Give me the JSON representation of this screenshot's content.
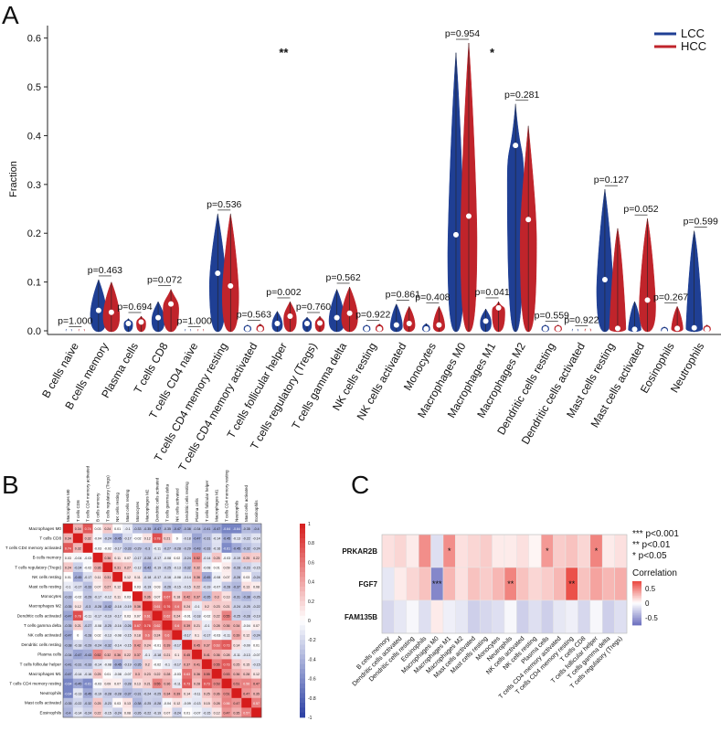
{
  "panel_labels": {
    "a": "A",
    "b": "B",
    "c": "C"
  },
  "colors": {
    "lcc": "#1f3f94",
    "hcc": "#c0242b",
    "heat_neg": "#2b3fa3",
    "heat_mid": "#ffffff",
    "heat_pos": "#d61c1c",
    "panel_c_neg": "#5b5fb8",
    "panel_c_pos": "#e8322a"
  },
  "chart_data": [
    {
      "type": "violin",
      "panel": "A",
      "title": "",
      "ylabel": "Fraction",
      "xlabel": "",
      "ylim": [
        0,
        0.62
      ],
      "yticks": [
        "0.0",
        "0.1",
        "0.2",
        "0.3",
        "0.4",
        "0.5",
        "0.6"
      ],
      "legend": {
        "position": "top-right",
        "entries": [
          "LCC",
          "HCC"
        ]
      },
      "categories": [
        "B cells naive",
        "B cells memory",
        "Plasma cells",
        "T cells CD8",
        "T cells CD4 naive",
        "T cells CD4 memory resting",
        "T cells CD4 memory activated",
        "T cells follicular helper",
        "T cells regulatory (Tregs)",
        "T cells gamma delta",
        "NK cells resting",
        "NK cells activated",
        "Monocytes",
        "Macrophages M0",
        "Macrophages M1",
        "Macrophages M2",
        "Dendritic cells resting",
        "Dendritic cells activated",
        "Mast cells resting",
        "Mast cells activated",
        "Eosinophils",
        "Neutrophils"
      ],
      "pvalues": [
        "p=1.000",
        "p=0.463",
        "p=0.694",
        "p=0.072",
        "p=1.000",
        "p=0.536",
        "p=0.563",
        "p=0.002",
        "p=0.760",
        "p=0.562",
        "p=0.922",
        "p=0.861",
        "p=0.408",
        "p=0.954",
        "p=0.041",
        "p=0.281",
        "p=0.559",
        "p=0.922",
        "p=0.127",
        "p=0.052",
        "p=0.267",
        "p=0.599"
      ],
      "significance": [
        {
          "category": "T cells follicular helper",
          "text": "**"
        },
        {
          "category": "Macrophages M1",
          "text": "*"
        }
      ],
      "series": [
        {
          "name": "LCC",
          "max": [
            0.001,
            0.105,
            0.025,
            0.06,
            0.001,
            0.24,
            0.012,
            0.04,
            0.028,
            0.085,
            0.012,
            0.055,
            0.015,
            0.57,
            0.045,
            0.465,
            0.012,
            0.002,
            0.29,
            0.06,
            0.008,
            0.205
          ],
          "median": [
            0.0,
            0.042,
            0.015,
            0.027,
            0.0,
            0.118,
            0.004,
            0.015,
            0.015,
            0.027,
            0.004,
            0.012,
            0.004,
            0.197,
            0.02,
            0.38,
            0.004,
            0.0,
            0.105,
            0.003,
            0.0,
            0.006
          ]
        },
        {
          "name": "HCC",
          "max": [
            0.001,
            0.1,
            0.03,
            0.085,
            0.001,
            0.24,
            0.014,
            0.06,
            0.03,
            0.09,
            0.014,
            0.05,
            0.05,
            0.59,
            0.06,
            0.42,
            0.012,
            0.003,
            0.21,
            0.23,
            0.05,
            0.012
          ],
          "median": [
            0.0,
            0.038,
            0.018,
            0.055,
            0.0,
            0.092,
            0.004,
            0.03,
            0.016,
            0.036,
            0.004,
            0.015,
            0.012,
            0.235,
            0.047,
            0.228,
            0.004,
            0.0,
            0.005,
            0.063,
            0.005,
            0.003
          ]
        }
      ]
    },
    {
      "type": "heatmap",
      "panel": "B",
      "labels": [
        "Macrophages M0",
        "T cells CD8",
        "T cells CD4 memory activated",
        "B cells memory",
        "T cells regulatory (Tregs)",
        "NK cells resting",
        "Mast cells resting",
        "Monocytes",
        "Macrophages M2",
        "Dendritic cells activated",
        "T cells gamma delta",
        "NK cells activated",
        "Dendritic cells resting",
        "Plasma cells",
        "T cells follicular helper",
        "Macrophages M1",
        "T cells CD4 memory resting",
        "Neutrophils",
        "Mast cells activated",
        "Eosinophils"
      ],
      "colorbar_ticks": [
        "1",
        "0.8",
        "0.6",
        "0.4",
        "0.2",
        "0",
        "-0.2",
        "-0.4",
        "-0.6",
        "-0.8",
        "-1"
      ],
      "values": [
        [
          1,
          0.34,
          0.74,
          0.03,
          0.24,
          0.01,
          -0.1,
          -0.33,
          -0.35,
          -0.47,
          -0.35,
          -0.47,
          -0.38,
          -0.34,
          -0.41,
          -0.47,
          -0.64,
          -0.64,
          -0.35,
          -0.4
        ],
        [
          0.34,
          1,
          0.32,
          -0.04,
          -0.24,
          -0.45,
          -0.17,
          -0.02,
          0.12,
          0.78,
          0.21,
          0,
          -0.18,
          -0.47,
          -0.31,
          -0.14,
          -0.45,
          -0.13,
          -0.22,
          -0.14
        ],
        [
          0.74,
          0.32,
          1,
          -0.03,
          -0.02,
          -0.17,
          -0.33,
          -0.29,
          -0.3,
          -0.11,
          -0.27,
          -0.28,
          -0.29,
          -0.43,
          -0.33,
          -0.16,
          -0.61,
          -0.45,
          -0.32,
          -0.24
        ],
        [
          0.03,
          -0.04,
          -0.03,
          1,
          0.36,
          0.11,
          0.07,
          -0.17,
          -0.28,
          -0.17,
          -0.08,
          0.02,
          -0.24,
          0.52,
          -0.14,
          0.25,
          -0.03,
          -0.19,
          0.25,
          0.22
        ],
        [
          0.24,
          -0.24,
          -0.02,
          0.36,
          1,
          0.31,
          0.27,
          -0.12,
          -0.42,
          -0.19,
          -0.25,
          -0.13,
          -0.32,
          0.32,
          -0.08,
          0.01,
          0.09,
          -0.28,
          -0.23,
          -0.15
        ],
        [
          0.01,
          -0.45,
          -0.17,
          0.11,
          0.31,
          1,
          0.12,
          0.11,
          -0.18,
          -0.17,
          -0.16,
          -0.08,
          -0.14,
          0.36,
          -0.45,
          -0.08,
          0.07,
          -0.28,
          0.03,
          -0.24
        ],
        [
          -0.1,
          -0.17,
          -0.33,
          0.07,
          0.27,
          0.12,
          1,
          0.03,
          -0.19,
          0.03,
          -0.26,
          -0.15,
          -0.15,
          0.22,
          -0.19,
          -0.07,
          -0.28,
          -0.37,
          0.13,
          0.08
        ],
        [
          -0.33,
          -0.02,
          -0.29,
          -0.17,
          -0.12,
          0.11,
          0.03,
          1,
          0.36,
          0.07,
          0.67,
          0.18,
          0.42,
          0.37,
          -0.35,
          0.3,
          0.13,
          -0.31,
          -0.38,
          -0.26
        ],
        [
          -0.35,
          0.12,
          -0.3,
          -0.28,
          -0.42,
          -0.18,
          -0.19,
          0.36,
          1,
          0.61,
          0.76,
          0.6,
          0.24,
          -0.1,
          0.2,
          0.23,
          0.21,
          -0.24,
          -0.25,
          -0.22
        ],
        [
          -0.47,
          0.78,
          -0.11,
          -0.17,
          -0.19,
          -0.17,
          0.03,
          0.07,
          0.61,
          1,
          0.62,
          0.24,
          -0.01,
          -0.18,
          -0.02,
          0.22,
          0.55,
          -0.25,
          -0.28,
          -0.19
        ],
        [
          -0.35,
          0.21,
          -0.27,
          -0.08,
          -0.25,
          -0.16,
          -0.26,
          0.67,
          0.76,
          0.62,
          1,
          0.6,
          0.39,
          0.21,
          -0.1,
          0.28,
          0.36,
          0.34,
          -0.04,
          0.07
        ],
        [
          -0.47,
          0,
          -0.28,
          0.02,
          -0.13,
          -0.08,
          -0.15,
          0.18,
          0.6,
          0.24,
          0.6,
          1,
          -0.17,
          0.1,
          -0.17,
          -0.03,
          -0.11,
          0.39,
          0.12,
          -0.24
        ],
        [
          -0.38,
          -0.18,
          -0.29,
          -0.24,
          -0.32,
          -0.14,
          -0.15,
          0.42,
          0.24,
          -0.01,
          0.39,
          -0.17,
          1,
          0.45,
          0.37,
          0.63,
          0.73,
          0.14,
          -0.09,
          0.01
        ],
        [
          -0.34,
          -0.47,
          -0.43,
          0.52,
          0.32,
          0.36,
          0.22,
          0.37,
          -0.1,
          -0.18,
          0.21,
          0.1,
          0.45,
          1,
          0.41,
          0.36,
          0.28,
          -0.11,
          -0.13,
          -0.07
        ],
        [
          -0.41,
          -0.31,
          -0.33,
          -0.14,
          -0.08,
          -0.45,
          -0.19,
          -0.35,
          0.2,
          -0.02,
          -0.1,
          -0.17,
          0.37,
          0.41,
          1,
          0.55,
          0.73,
          0.25,
          0.15,
          -0.15
        ],
        [
          -0.47,
          -0.14,
          -0.16,
          0.25,
          0.01,
          -0.08,
          -0.07,
          0.3,
          0.23,
          0.22,
          0.28,
          -0.03,
          0.63,
          0.36,
          0.55,
          1,
          0.53,
          0.36,
          0.28,
          0.12
        ],
        [
          -0.64,
          -0.45,
          -0.61,
          -0.03,
          0.09,
          0.07,
          -0.28,
          0.13,
          0.21,
          0.55,
          0.36,
          -0.11,
          0.73,
          0.28,
          0.73,
          0.53,
          1,
          0.51,
          0.56,
          0.47
        ],
        [
          -0.64,
          -0.13,
          -0.45,
          -0.19,
          -0.28,
          -0.28,
          -0.37,
          -0.31,
          -0.24,
          -0.25,
          0.34,
          0.39,
          0.14,
          -0.11,
          0.25,
          0.36,
          0.51,
          1,
          0.47,
          0.35
        ],
        [
          -0.35,
          -0.22,
          -0.32,
          0.25,
          -0.23,
          0.03,
          0.13,
          -0.38,
          -0.25,
          -0.28,
          -0.04,
          0.12,
          -0.09,
          -0.13,
          0.15,
          0.28,
          0.56,
          0.47,
          1,
          0.57
        ],
        [
          -0.4,
          -0.14,
          -0.24,
          0.22,
          -0.15,
          -0.24,
          0.08,
          -0.26,
          -0.22,
          -0.19,
          0.07,
          -0.24,
          0.01,
          -0.07,
          -0.15,
          0.12,
          0.47,
          0.35,
          0.57,
          1
        ]
      ]
    },
    {
      "type": "heatmap",
      "panel": "C",
      "rows": [
        "PRKAR2B",
        "FGF7",
        "FAM135B"
      ],
      "columns": [
        "B cells memory",
        "Dendritic cells activated",
        "Dendritic cells resting",
        "Eosinophils",
        "Macrophages M0",
        "Macrophages M1",
        "Macrophages M2",
        "Mast cells activated",
        "Mast cells resting",
        "Monocytes",
        "Neutrophils",
        "NK cells activated",
        "NK cells resting",
        "Plasma cells",
        "T cells CD4 memory activated",
        "T cells CD4 memory resting",
        "T cells CD8",
        "T cells follicular helper",
        "T cells gamma delta",
        "T cells regulatory (Tregs)"
      ],
      "values": [
        [
          0.15,
          0.2,
          0.1,
          0.55,
          -0.2,
          0.55,
          0.15,
          0.2,
          0.25,
          0.1,
          0.1,
          0.15,
          0.05,
          0.5,
          0.25,
          0.3,
          0.2,
          0.6,
          0.1,
          0.15
        ],
        [
          -0.15,
          0.1,
          0.2,
          0.3,
          -0.75,
          0.35,
          0.15,
          0.3,
          0.25,
          0.35,
          0.6,
          0.3,
          0.2,
          0.25,
          0.35,
          0.85,
          0.3,
          0.45,
          0.35,
          0.4
        ],
        [
          -0.25,
          -0.15,
          -0.05,
          -0.2,
          0.1,
          -0.1,
          -0.15,
          -0.3,
          -0.25,
          -0.2,
          -0.05,
          -0.3,
          -0.2,
          -0.3,
          -0.15,
          -0.1,
          -0.25,
          -0.05,
          -0.3,
          -0.2
        ]
      ],
      "stars": [
        {
          "row": 0,
          "col": 5,
          "text": "*"
        },
        {
          "row": 0,
          "col": 13,
          "text": "*"
        },
        {
          "row": 0,
          "col": 17,
          "text": "*"
        },
        {
          "row": 1,
          "col": 4,
          "text": "***"
        },
        {
          "row": 1,
          "col": 10,
          "text": "**"
        },
        {
          "row": 1,
          "col": 15,
          "text": "**"
        }
      ],
      "significance_legend": [
        "*** p<0.001",
        "** p<0.01",
        "* p<0.05"
      ],
      "colorbar_title": "Correlation",
      "colorbar_ticks": [
        "0.5",
        "0",
        "-0.5"
      ]
    }
  ]
}
